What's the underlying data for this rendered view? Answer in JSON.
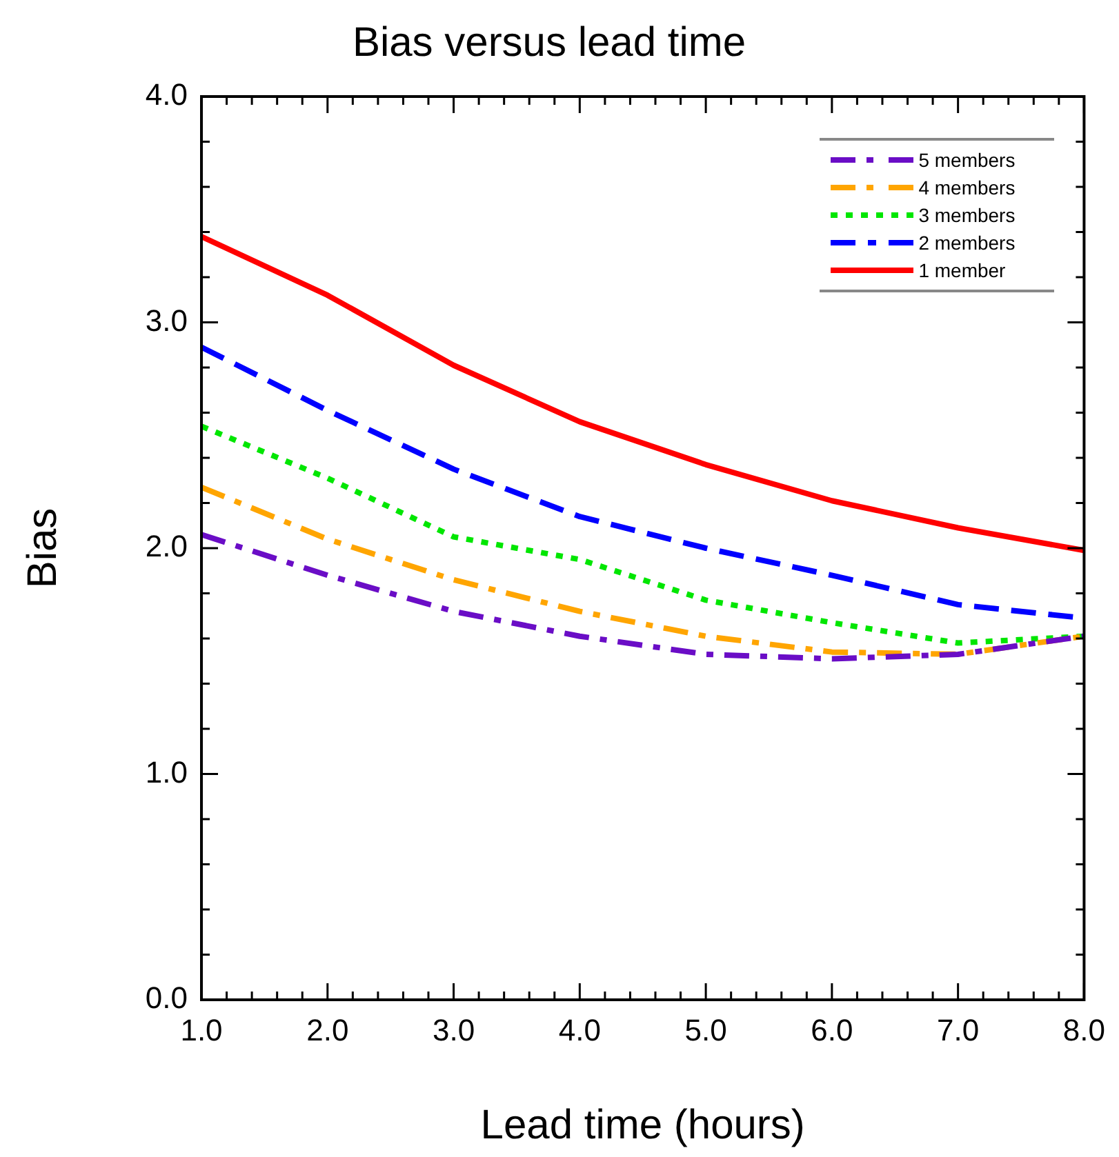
{
  "chart_data": {
    "type": "line",
    "title": "Bias versus lead time",
    "xlabel": "Lead time (hours)",
    "ylabel": "Bias",
    "x": [
      1,
      2,
      3,
      4,
      5,
      6,
      7,
      8
    ],
    "series": [
      {
        "name": "5 members",
        "color": "#6a0dc6",
        "line_style": "dashdot",
        "values": [
          2.06,
          1.88,
          1.72,
          1.61,
          1.53,
          1.51,
          1.53,
          1.61
        ]
      },
      {
        "name": "4 members",
        "color": "#ffa500",
        "line_style": "dashdot",
        "values": [
          2.27,
          2.04,
          1.86,
          1.72,
          1.61,
          1.54,
          1.53,
          1.61
        ]
      },
      {
        "name": "3 members",
        "color": "#00e600",
        "line_style": "dotted",
        "values": [
          2.54,
          2.31,
          2.05,
          1.95,
          1.77,
          1.67,
          1.58,
          1.61
        ]
      },
      {
        "name": "2 members",
        "color": "#0000ff",
        "line_style": "dashed",
        "values": [
          2.89,
          2.61,
          2.35,
          2.14,
          2.0,
          1.88,
          1.75,
          1.69
        ]
      },
      {
        "name": "1 member",
        "color": "#ff0000",
        "line_style": "solid",
        "values": [
          3.38,
          3.12,
          2.81,
          2.56,
          2.37,
          2.21,
          2.09,
          1.99
        ]
      }
    ],
    "xlim": [
      1,
      8
    ],
    "xticks": [
      {
        "value": 1,
        "label": "1.0"
      },
      {
        "value": 1.2,
        "label": null
      },
      {
        "value": 1.4,
        "label": null
      },
      {
        "value": 1.6,
        "label": null
      },
      {
        "value": 1.8,
        "label": null
      },
      {
        "value": 2,
        "label": "2.0"
      },
      {
        "value": 2.2,
        "label": null
      },
      {
        "value": 2.4,
        "label": null
      },
      {
        "value": 2.6,
        "label": null
      },
      {
        "value": 2.8,
        "label": null
      },
      {
        "value": 3,
        "label": "3.0"
      },
      {
        "value": 3.2,
        "label": null
      },
      {
        "value": 3.4,
        "label": null
      },
      {
        "value": 3.6,
        "label": null
      },
      {
        "value": 3.8,
        "label": null
      },
      {
        "value": 4,
        "label": "4.0"
      },
      {
        "value": 4.2,
        "label": null
      },
      {
        "value": 4.4,
        "label": null
      },
      {
        "value": 4.6,
        "label": null
      },
      {
        "value": 4.8,
        "label": null
      },
      {
        "value": 5,
        "label": "5.0"
      },
      {
        "value": 5.2,
        "label": null
      },
      {
        "value": 5.4,
        "label": null
      },
      {
        "value": 5.6,
        "label": null
      },
      {
        "value": 5.8,
        "label": null
      },
      {
        "value": 6,
        "label": "6.0"
      },
      {
        "value": 6.2,
        "label": null
      },
      {
        "value": 6.4,
        "label": null
      },
      {
        "value": 6.6,
        "label": null
      },
      {
        "value": 6.8,
        "label": null
      },
      {
        "value": 7,
        "label": "7.0"
      },
      {
        "value": 7.2,
        "label": null
      },
      {
        "value": 7.4,
        "label": null
      },
      {
        "value": 7.6,
        "label": null
      },
      {
        "value": 7.8,
        "label": null
      },
      {
        "value": 8,
        "label": "8.0"
      }
    ],
    "ylim": [
      0,
      4
    ],
    "yticks": [
      {
        "value": 0,
        "label": "0.0"
      },
      {
        "value": 0.2,
        "label": null
      },
      {
        "value": 0.4,
        "label": null
      },
      {
        "value": 0.6,
        "label": null
      },
      {
        "value": 0.8,
        "label": null
      },
      {
        "value": 1,
        "label": "1.0"
      },
      {
        "value": 1.2,
        "label": null
      },
      {
        "value": 1.4,
        "label": null
      },
      {
        "value": 1.6,
        "label": null
      },
      {
        "value": 1.8,
        "label": null
      },
      {
        "value": 2,
        "label": "2.0"
      },
      {
        "value": 2.2,
        "label": null
      },
      {
        "value": 2.4,
        "label": null
      },
      {
        "value": 2.6,
        "label": null
      },
      {
        "value": 2.8,
        "label": null
      },
      {
        "value": 3,
        "label": "3.0"
      },
      {
        "value": 3.2,
        "label": null
      },
      {
        "value": 3.4,
        "label": null
      },
      {
        "value": 3.6,
        "label": null
      },
      {
        "value": 3.8,
        "label": null
      },
      {
        "value": 4,
        "label": "4.0"
      }
    ],
    "grid": false,
    "legend": "top right",
    "marker": "none"
  }
}
